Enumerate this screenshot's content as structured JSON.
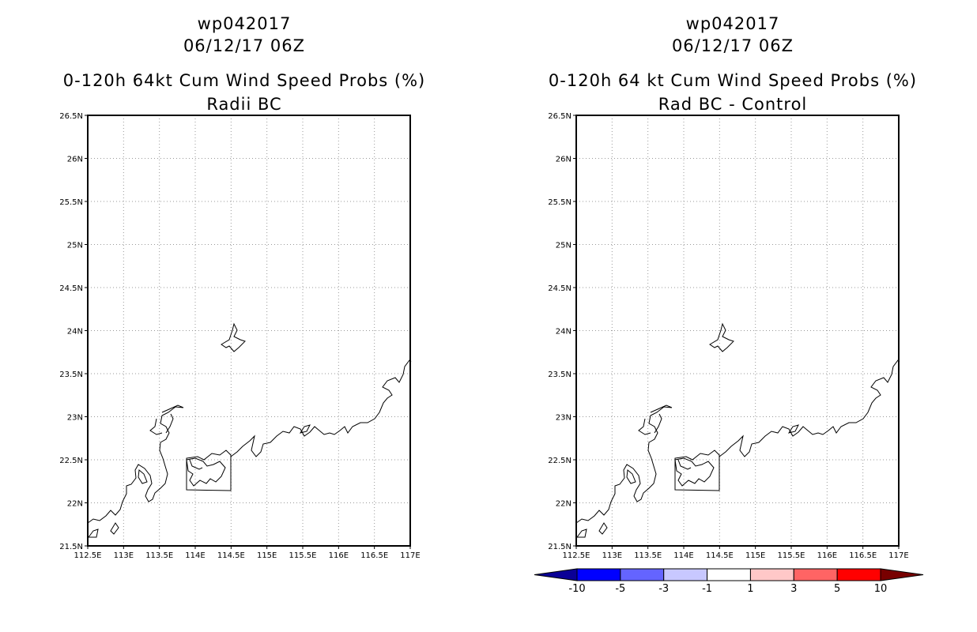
{
  "panels": [
    {
      "id": "left",
      "title_line1": "wp042017",
      "title_line2": "06/12/17 06Z",
      "title_line3": "0-120h 64kt Cum Wind Speed Probs (%)",
      "title_line4": "Radii BC"
    },
    {
      "id": "right",
      "title_line1": "wp042017",
      "title_line2": "06/12/17 06Z",
      "title_line3": "0-120h 64 kt Cum Wind Speed Probs (%)",
      "title_line4": "Rad BC - Control"
    }
  ],
  "map": {
    "lat_range": [
      21.5,
      26.5
    ],
    "lon_range": [
      112.5,
      117.0
    ],
    "lat_ticks": [
      "21.5N",
      "22N",
      "22.5N",
      "23N",
      "23.5N",
      "24N",
      "24.5N",
      "25N",
      "25.5N",
      "26N",
      "26.5N"
    ],
    "lon_ticks": [
      "112.5E",
      "113E",
      "113.5E",
      "114E",
      "114.5E",
      "115E",
      "115.5E",
      "116E",
      "116.5E",
      "117E"
    ],
    "gridlines": "dotted"
  },
  "colorbar": {
    "labels": [
      "-10",
      "-5",
      "-3",
      "-1",
      "1",
      "3",
      "5",
      "10"
    ],
    "colors": [
      "#0a0096",
      "#0000ff",
      "#6464ff",
      "#c8c8ff",
      "#ffffff",
      "#ffc8c8",
      "#ff6464",
      "#ff0000",
      "#780000"
    ]
  }
}
